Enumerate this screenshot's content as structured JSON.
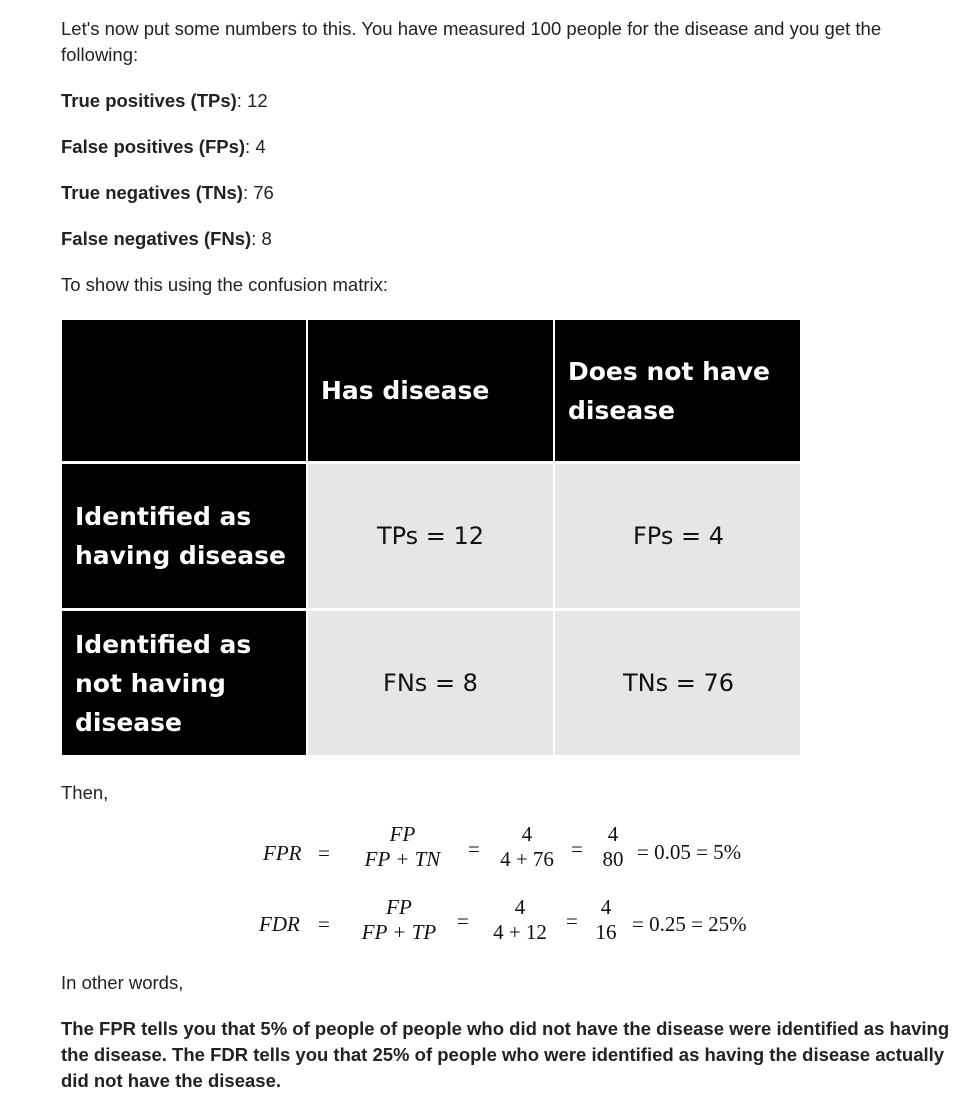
{
  "intro": "Let's now put some numbers to this. You have measured 100 people for the disease and you get the following:",
  "stats": [
    {
      "label": "True positives (TPs)",
      "value": ": 12"
    },
    {
      "label": "False positives (FPs)",
      "value": ": 4"
    },
    {
      "label": "True negatives (TNs)",
      "value": ": 76"
    },
    {
      "label": "False negatives (FNs)",
      "value": ": 8"
    }
  ],
  "matrix_intro": "To show this using the confusion matrix:",
  "matrix": {
    "col_headers": [
      "Has disease",
      "Does not have disease"
    ],
    "row_headers": [
      "Identified as having disease",
      "Identified as not having disease"
    ],
    "cells": [
      [
        "TPs = 12",
        "FPs = 4"
      ],
      [
        "FNs = 8",
        "TNs = 76"
      ]
    ]
  },
  "then": "Then,",
  "formulas": {
    "fpr": {
      "lhs": "FPR =",
      "f1_num": "FP",
      "f1_den": "FP + TN",
      "f2_num": "4",
      "f2_den": "4 + 76",
      "f3_num": "4",
      "f3_den": "80",
      "result": "= 0.05 = 5%"
    },
    "fdr": {
      "lhs": "FDR =",
      "f1_num": "FP",
      "f1_den": "FP + TP",
      "f2_num": "4",
      "f2_den": "4 + 12",
      "f3_num": "4",
      "f3_den": "16",
      "result": "= 0.25 = 25%"
    },
    "eq_sign": "="
  },
  "in_other_words": "In other words,",
  "conclusion": "The FPR tells you that 5% of people of people who did not have the disease were identified as having the disease. The FDR tells you that 25% of people who were identified as having the disease actually did not have the disease."
}
